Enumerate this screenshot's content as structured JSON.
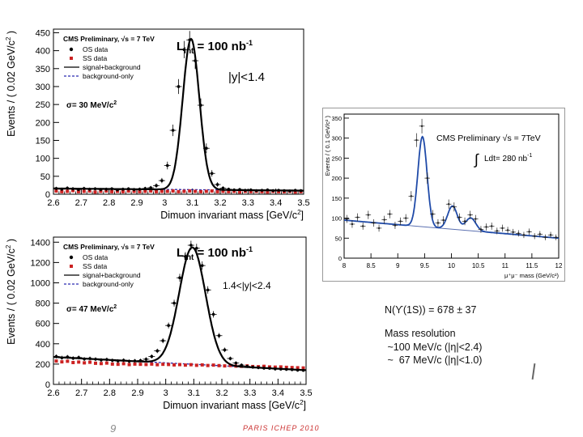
{
  "page": {
    "number": "9",
    "footer_logo": "PARIS ICHEP 2010"
  },
  "info": {
    "yield": "N(ϒ(1S)) = 678 ± 37",
    "resolution_title": "Mass resolution",
    "resolution_line1": " ~100 MeV/c (|η|<2.4)",
    "resolution_line2": " ~  67 MeV/c (|η|<1.0)"
  },
  "colors": {
    "os": "#000000",
    "ss": "#cc2222",
    "bkg": "#2a2ab0",
    "fit": "#000000",
    "ups_fit": "#1f4aa8",
    "ups_data": "#222222"
  },
  "chart_data": [
    {
      "id": "jpsi-central",
      "type": "scatter",
      "title": "CMS Preliminary, √s = 7 TeV",
      "lumi": "L",
      "lumi_sub": "int",
      "lumi_value": " = 100 nb",
      "lumi_sup": "-1",
      "rapidity": "|y|<1.4",
      "sigma": "σ= 30 MeV/c",
      "sigma_sup": "2",
      "xlabel": "Dimuon invariant mass [GeV/c",
      "xlabel_close": "]",
      "ylabel": "Events / ( 0.02 GeV/c",
      "ylabel_close": " )",
      "xlim": [
        2.6,
        3.5
      ],
      "ylim": [
        0,
        460
      ],
      "xticks": [
        2.6,
        2.7,
        2.8,
        2.9,
        3.0,
        3.1,
        3.2,
        3.3,
        3.4,
        3.5
      ],
      "xtick_labels": [
        "2.6",
        "2.7",
        "2.8",
        "2.9",
        "3",
        "3.1",
        "3.2",
        "3.3",
        "3.4",
        "3.5"
      ],
      "yticks": [
        0,
        50,
        100,
        150,
        200,
        250,
        300,
        350,
        400,
        450
      ],
      "ytick_labels": [
        "0",
        "50",
        "100",
        "150",
        "200",
        "250",
        "300",
        "350",
        "400",
        "450"
      ],
      "legend": [
        "OS data",
        "SS data",
        "signal+background",
        "background-only"
      ],
      "fit": {
        "mean": 3.095,
        "sigma": 0.03,
        "amplitude": 420,
        "bkg_start": 16,
        "bkg_end": 10
      },
      "ss_level": 8,
      "x": [
        2.61,
        2.63,
        2.65,
        2.67,
        2.69,
        2.71,
        2.73,
        2.75,
        2.77,
        2.79,
        2.81,
        2.83,
        2.85,
        2.87,
        2.89,
        2.91,
        2.93,
        2.95,
        2.97,
        2.99,
        3.01,
        3.03,
        3.05,
        3.07,
        3.09,
        3.11,
        3.13,
        3.15,
        3.17,
        3.19,
        3.21,
        3.23,
        3.25,
        3.27,
        3.29,
        3.31,
        3.33,
        3.35,
        3.37,
        3.39,
        3.41,
        3.43,
        3.45,
        3.47,
        3.49
      ],
      "os": [
        16,
        14,
        17,
        15,
        13,
        16,
        14,
        15,
        13,
        14,
        15,
        12,
        14,
        15,
        13,
        14,
        16,
        18,
        24,
        38,
        80,
        178,
        300,
        403,
        430,
        372,
        248,
        128,
        58,
        27,
        17,
        14,
        12,
        13,
        11,
        12,
        10,
        11,
        12,
        10,
        11,
        10,
        9,
        11,
        10
      ],
      "ss": [
        9,
        7,
        8,
        10,
        7,
        8,
        9,
        6,
        8,
        9,
        7,
        8,
        7,
        9,
        8,
        7,
        8,
        9,
        7,
        8,
        8,
        9,
        7,
        8,
        9,
        8,
        7,
        8,
        9,
        7,
        8,
        7,
        8,
        6,
        8,
        7,
        8,
        7,
        6,
        8,
        7,
        7,
        8,
        6,
        7
      ]
    },
    {
      "id": "jpsi-forward",
      "type": "scatter",
      "title": "CMS Preliminary, √s = 7 TeV",
      "lumi": "L",
      "lumi_sub": "int",
      "lumi_value": " = 100 nb",
      "lumi_sup": "-1",
      "rapidity": "1.4<|y|<2.4",
      "sigma": "σ= 47 MeV/c",
      "sigma_sup": "2",
      "xlabel": "Dimuon invariant mass [GeV/c",
      "xlabel_close": "]",
      "ylabel": "Events / ( 0.02 GeV/c",
      "ylabel_close": " )",
      "xlim": [
        2.6,
        3.5
      ],
      "ylim": [
        0,
        1450
      ],
      "xticks": [
        2.6,
        2.7,
        2.8,
        2.9,
        3.0,
        3.1,
        3.2,
        3.3,
        3.4,
        3.5
      ],
      "xtick_labels": [
        "2.6",
        "2.7",
        "2.8",
        "2.9",
        "3",
        "3.1",
        "3.2",
        "3.3",
        "3.4",
        "3.5"
      ],
      "yticks": [
        0,
        200,
        400,
        600,
        800,
        1000,
        1200,
        1400
      ],
      "ytick_labels": [
        "0",
        "200",
        "400",
        "600",
        "800",
        "1000",
        "1200",
        "1400"
      ],
      "legend": [
        "OS data",
        "SS data",
        "signal+background",
        "background-only"
      ],
      "fit": {
        "mean": 3.095,
        "sigma": 0.047,
        "amplitude": 1150,
        "bkg_start": 270,
        "bkg_end": 140
      },
      "ss_level": 200,
      "x": [
        2.61,
        2.63,
        2.65,
        2.67,
        2.69,
        2.71,
        2.73,
        2.75,
        2.77,
        2.79,
        2.81,
        2.83,
        2.85,
        2.87,
        2.89,
        2.91,
        2.93,
        2.95,
        2.97,
        2.99,
        3.01,
        3.03,
        3.05,
        3.07,
        3.09,
        3.11,
        3.13,
        3.15,
        3.17,
        3.19,
        3.21,
        3.23,
        3.25,
        3.27,
        3.29,
        3.31,
        3.33,
        3.35,
        3.37,
        3.39,
        3.41,
        3.43,
        3.45,
        3.47,
        3.49
      ],
      "os": [
        275,
        262,
        270,
        258,
        265,
        250,
        255,
        248,
        240,
        245,
        236,
        230,
        238,
        228,
        232,
        235,
        248,
        275,
        330,
        430,
        580,
        800,
        1050,
        1260,
        1370,
        1340,
        1170,
        930,
        690,
        480,
        340,
        255,
        210,
        190,
        178,
        170,
        165,
        160,
        158,
        152,
        150,
        148,
        145,
        140,
        138
      ],
      "ss": [
        230,
        222,
        228,
        215,
        220,
        212,
        218,
        208,
        205,
        210,
        200,
        198,
        204,
        195,
        200,
        198,
        196,
        200,
        194,
        198,
        196,
        192,
        195,
        190,
        194,
        188,
        192,
        186,
        190,
        185,
        182,
        186,
        180,
        178,
        182,
        176,
        174,
        178,
        172,
        170,
        172,
        168,
        166,
        164,
        162
      ]
    },
    {
      "id": "upsilon",
      "type": "scatter",
      "title": "CMS Preliminary √s = 7TeV",
      "integral": "∫",
      "lumi_text": "Ldt= 280 nb",
      "lumi_sup": "-1",
      "xlabel": "μ⁺μ⁻ mass (GeV/c²)",
      "ylabel": "Events / ( 0.1 GeV/c² )",
      "xlim": [
        8,
        12
      ],
      "ylim": [
        0,
        360
      ],
      "xticks": [
        8,
        8.5,
        9,
        9.5,
        10,
        10.5,
        11,
        11.5,
        12
      ],
      "xtick_labels": [
        "8",
        "8.5",
        "9",
        "9.5",
        "10",
        "10.5",
        "11",
        "11.5",
        "12"
      ],
      "yticks": [
        0,
        50,
        100,
        150,
        200,
        250,
        300,
        350
      ],
      "ytick_labels": [
        "0",
        "50",
        "100",
        "150",
        "200",
        "250",
        "300",
        "350"
      ],
      "fit": {
        "bkg_start": 95,
        "bkg_end": 50,
        "peaks": [
          {
            "mean": 9.46,
            "sigma": 0.085,
            "amplitude": 225
          },
          {
            "mean": 10.02,
            "sigma": 0.09,
            "amplitude": 58
          },
          {
            "mean": 10.36,
            "sigma": 0.095,
            "amplitude": 32
          }
        ]
      },
      "x": [
        8.05,
        8.15,
        8.25,
        8.35,
        8.45,
        8.55,
        8.65,
        8.75,
        8.85,
        8.95,
        9.05,
        9.15,
        9.25,
        9.35,
        9.45,
        9.55,
        9.65,
        9.75,
        9.85,
        9.95,
        10.05,
        10.15,
        10.25,
        10.35,
        10.45,
        10.55,
        10.65,
        10.75,
        10.85,
        10.95,
        11.05,
        11.15,
        11.25,
        11.35,
        11.45,
        11.55,
        11.65,
        11.75,
        11.85,
        11.95
      ],
      "values": [
        98,
        85,
        102,
        80,
        108,
        88,
        75,
        96,
        110,
        82,
        92,
        100,
        155,
        295,
        330,
        200,
        110,
        88,
        95,
        135,
        128,
        102,
        92,
        108,
        98,
        72,
        78,
        80,
        68,
        75,
        70,
        65,
        62,
        58,
        66,
        55,
        60,
        52,
        58,
        52
      ]
    }
  ]
}
